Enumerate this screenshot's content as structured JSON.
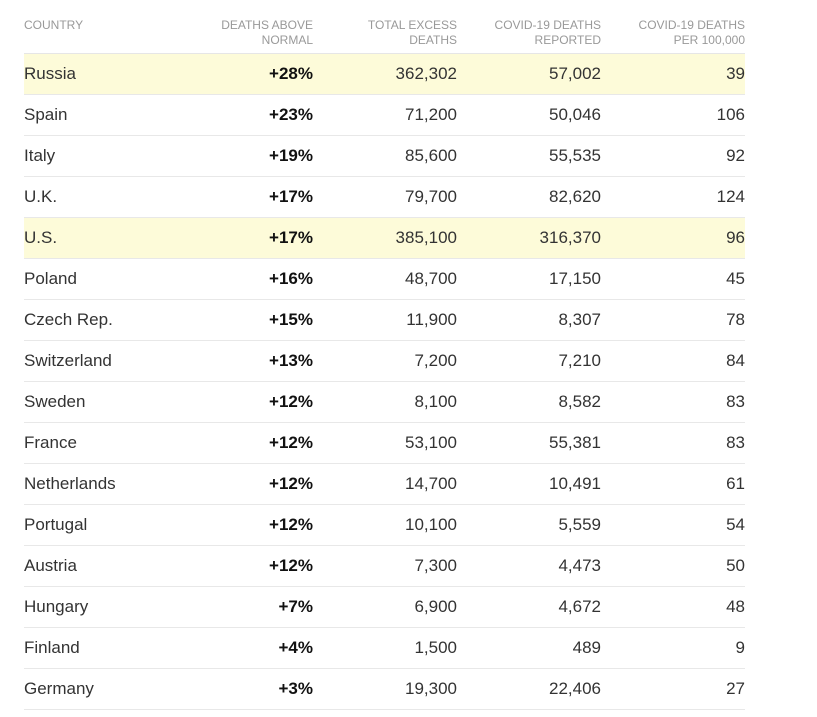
{
  "headers": {
    "country": "COUNTRY",
    "pct_line1": "DEATHS ABOVE",
    "pct_line2": "NORMAL",
    "total_line1": "TOTAL EXCESS",
    "total_line2": "DEATHS",
    "reported_line1": "COVID-19 DEATHS",
    "reported_line2": "REPORTED",
    "per100k_line1": "COVID-19 DEATHS",
    "per100k_line2": "PER 100,000"
  },
  "highlight_color": "#fdfbd9",
  "rows": [
    {
      "country": "Russia",
      "pct": "+28%",
      "total": "362,302",
      "reported": "57,002",
      "per100k": "39",
      "highlight": true
    },
    {
      "country": "Spain",
      "pct": "+23%",
      "total": "71,200",
      "reported": "50,046",
      "per100k": "106",
      "highlight": false
    },
    {
      "country": "Italy",
      "pct": "+19%",
      "total": "85,600",
      "reported": "55,535",
      "per100k": "92",
      "highlight": false
    },
    {
      "country": "U.K.",
      "pct": "+17%",
      "total": "79,700",
      "reported": "82,620",
      "per100k": "124",
      "highlight": false
    },
    {
      "country": "U.S.",
      "pct": "+17%",
      "total": "385,100",
      "reported": "316,370",
      "per100k": "96",
      "highlight": true
    },
    {
      "country": "Poland",
      "pct": "+16%",
      "total": "48,700",
      "reported": "17,150",
      "per100k": "45",
      "highlight": false
    },
    {
      "country": "Czech Rep.",
      "pct": "+15%",
      "total": "11,900",
      "reported": "8,307",
      "per100k": "78",
      "highlight": false
    },
    {
      "country": "Switzerland",
      "pct": "+13%",
      "total": "7,200",
      "reported": "7,210",
      "per100k": "84",
      "highlight": false
    },
    {
      "country": "Sweden",
      "pct": "+12%",
      "total": "8,100",
      "reported": "8,582",
      "per100k": "83",
      "highlight": false
    },
    {
      "country": "France",
      "pct": "+12%",
      "total": "53,100",
      "reported": "55,381",
      "per100k": "83",
      "highlight": false
    },
    {
      "country": "Netherlands",
      "pct": "+12%",
      "total": "14,700",
      "reported": "10,491",
      "per100k": "61",
      "highlight": false
    },
    {
      "country": "Portugal",
      "pct": "+12%",
      "total": "10,100",
      "reported": "5,559",
      "per100k": "54",
      "highlight": false
    },
    {
      "country": "Austria",
      "pct": "+12%",
      "total": "7,300",
      "reported": "4,473",
      "per100k": "50",
      "highlight": false
    },
    {
      "country": "Hungary",
      "pct": "+7%",
      "total": "6,900",
      "reported": "4,672",
      "per100k": "48",
      "highlight": false
    },
    {
      "country": "Finland",
      "pct": "+4%",
      "total": "1,500",
      "reported": "489",
      "per100k": "9",
      "highlight": false
    },
    {
      "country": "Germany",
      "pct": "+3%",
      "total": "19,300",
      "reported": "22,406",
      "per100k": "27",
      "highlight": false
    }
  ]
}
